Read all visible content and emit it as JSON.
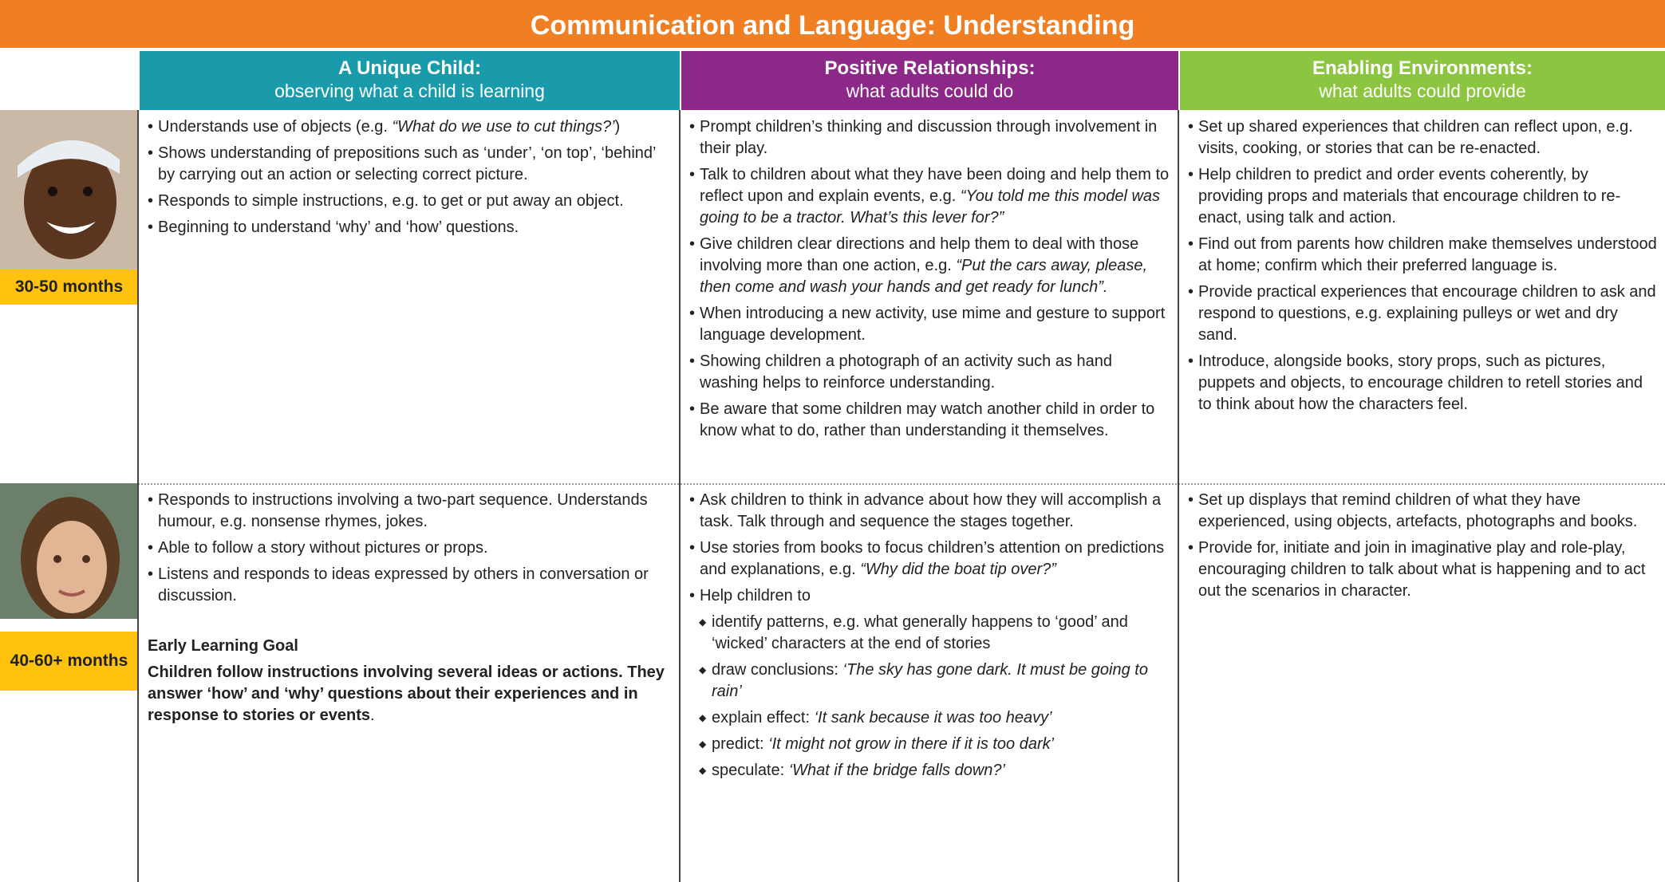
{
  "title": "Communication and Language: Understanding",
  "columns": [
    {
      "title": "A Unique Child:",
      "subtitle": "observing what a child is learning"
    },
    {
      "title": "Positive Relationships:",
      "subtitle": "what adults could do"
    },
    {
      "title": "Enabling Environments:",
      "subtitle": "what adults could provide"
    }
  ],
  "rows": [
    {
      "age": "30-50 months",
      "cells": [
        {
          "bullets": [
            {
              "text": "Understands use of objects (e.g. ",
              "example": "“What do we use to cut things?’",
              "end": ")"
            },
            {
              "text": "Shows understanding of prepositions such as ‘under’, ‘on top’, ‘behind’ by carrying out an action or selecting correct picture."
            },
            {
              "text": "Responds to simple instructions, e.g. to get or put away an object."
            },
            {
              "text": "Beginning to understand ‘why’ and ‘how’ questions."
            }
          ]
        },
        {
          "bullets": [
            {
              "text": "Prompt children’s thinking and discussion through involvement in their play."
            },
            {
              "text": "Talk to children about what they have been doing and help them to reflect upon and explain events, e.g. ",
              "example": "“You told me this model was going to be a tractor. What’s this lever for?”"
            },
            {
              "text": "Give children clear directions and help them to deal with those involving more than one action, e.g. ",
              "example": "“Put the cars away, please, then come and wash your hands and get ready for lunch”."
            },
            {
              "text": "When introducing a new activity, use mime and gesture to support language development."
            },
            {
              "text": "Showing children a photograph of an activity such as hand washing helps to reinforce understanding."
            },
            {
              "text": "Be aware that some children may watch another child in order to know what to do, rather than understanding it themselves."
            }
          ]
        },
        {
          "bullets": [
            {
              "text": "Set up shared experiences that children can reflect upon, e.g. visits, cooking, or stories that can be re-enacted."
            },
            {
              "text": "Help children to predict and order events coherently, by providing props and materials that encourage children to re-enact, using talk and action."
            },
            {
              "text": "Find out from parents how children make themselves understood at home; confirm which their preferred language is."
            },
            {
              "text": "Provide practical experiences that encourage children to ask and respond to questions, e.g. explaining pulleys or wet and dry sand."
            },
            {
              "text": "Introduce, alongside books, story props, such as pictures, puppets and objects, to encourage children to retell stories and to think about how the characters feel."
            }
          ]
        }
      ]
    },
    {
      "age": "40-60+ months",
      "cells": [
        {
          "bullets": [
            {
              "text": "Responds to instructions involving a two-part sequence. Understands humour, e.g. nonsense rhymes, jokes."
            },
            {
              "text": "Able to follow a story without pictures or props."
            },
            {
              "text": "Listens and responds to ideas expressed by others in conversation or discussion."
            }
          ],
          "goal": {
            "title": "Early Learning Goal",
            "text": "Children follow instructions involving several ideas or actions. They answer ‘how’ and ‘why’ questions about their experiences and in response to stories or events",
            "end": "."
          }
        },
        {
          "bullets": [
            {
              "text": "Ask children to think in advance about how they will accomplish a task. Talk through and sequence the stages together."
            },
            {
              "text": "Use stories from books to focus children’s attention on predictions and explanations, e.g. ",
              "example": "“Why did the boat tip over?”"
            },
            {
              "text": "Help children to",
              "items": [
                {
                  "text": "identify patterns, e.g. what generally happens to ‘good’ and ‘wicked’ characters at the end of stories"
                },
                {
                  "text": "draw conclusions: ",
                  "example": "‘The sky has gone dark. It must be going to rain’"
                },
                {
                  "text": "explain effect: ",
                  "example": "‘It sank because it was too heavy’"
                },
                {
                  "text": "predict: ",
                  "example": "‘It might not grow in there if it is too dark’"
                },
                {
                  "text": "speculate: ",
                  "example": "‘What if the bridge falls down?’"
                }
              ]
            }
          ]
        },
        {
          "bullets": [
            {
              "text": "Set up displays that remind children of what they have experienced, using objects, artefacts, photographs and books."
            },
            {
              "text": "Provide for, initiate and join in imaginative play and role-play, encouraging children to talk about what is happening and to act out the scenarios in character."
            }
          ]
        }
      ]
    }
  ]
}
